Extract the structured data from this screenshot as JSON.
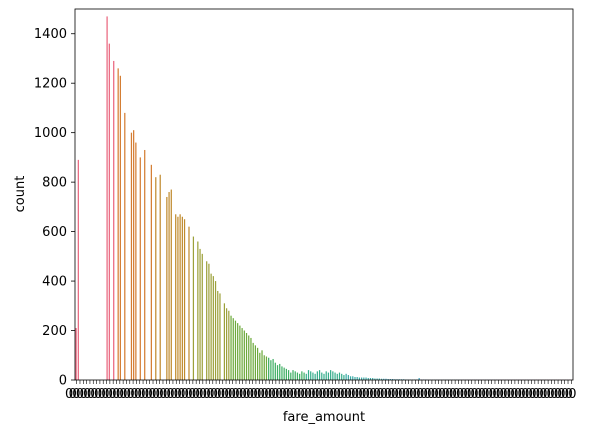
{
  "chart_data": {
    "type": "bar",
    "title": "",
    "xlabel": "fare_amount",
    "ylabel": "count",
    "ylim": [
      0,
      1500
    ],
    "yticks": [
      0,
      200,
      400,
      600,
      800,
      1000,
      1200,
      1400
    ],
    "grid": false,
    "legend": "none",
    "x_tick_labels_note": "dense overlapping category tick labels",
    "values": [
      210,
      890,
      0,
      0,
      0,
      0,
      0,
      0,
      0,
      0,
      0,
      0,
      0,
      0,
      1470,
      1360,
      0,
      1290,
      0,
      1260,
      1230,
      0,
      1080,
      0,
      0,
      1000,
      1010,
      960,
      0,
      900,
      0,
      930,
      0,
      0,
      870,
      0,
      820,
      0,
      830,
      0,
      0,
      740,
      760,
      770,
      0,
      670,
      660,
      670,
      660,
      650,
      0,
      620,
      0,
      580,
      0,
      560,
      530,
      510,
      0,
      480,
      470,
      430,
      420,
      400,
      360,
      350,
      0,
      310,
      290,
      280,
      260,
      250,
      240,
      230,
      220,
      210,
      200,
      190,
      180,
      170,
      150,
      140,
      130,
      110,
      120,
      100,
      95,
      90,
      80,
      85,
      70,
      60,
      65,
      55,
      50,
      45,
      40,
      30,
      40,
      35,
      30,
      25,
      35,
      30,
      25,
      40,
      35,
      30,
      25,
      35,
      40,
      30,
      25,
      35,
      30,
      40,
      35,
      30,
      25,
      30,
      25,
      20,
      25,
      20,
      15,
      15,
      12,
      12,
      10,
      10,
      10,
      10,
      8,
      8,
      8,
      6,
      6,
      6,
      5,
      5,
      5,
      4,
      4,
      4,
      3,
      3,
      3,
      3,
      3,
      2,
      2,
      2,
      2,
      2,
      2,
      8,
      2,
      2,
      2,
      1,
      1,
      1,
      1,
      1,
      1,
      1,
      1,
      1,
      1,
      1,
      1,
      1,
      1,
      1,
      1,
      1,
      1,
      1,
      1,
      1,
      1,
      1,
      1,
      1,
      1,
      1,
      1,
      1,
      1,
      1,
      1,
      1,
      1,
      1,
      1,
      1,
      1,
      1,
      1,
      1,
      1,
      1,
      1,
      1,
      1,
      1,
      1,
      1,
      1,
      1,
      1,
      1,
      1,
      1,
      1,
      1,
      1,
      1,
      1,
      1,
      1,
      1,
      1,
      1,
      1
    ],
    "palette": [
      "#e9637c",
      "#d47c30",
      "#c08a2c",
      "#9ca03a",
      "#6ca93b",
      "#3dae62",
      "#36ad8c",
      "#38a9a5",
      "#3aa3bd",
      "#5f95e6",
      "#a57fea",
      "#d56fd6",
      "#ec68b0"
    ]
  }
}
